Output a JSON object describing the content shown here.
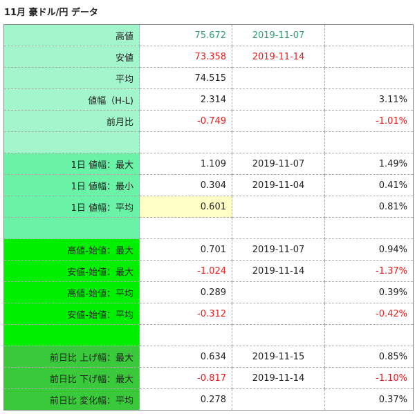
{
  "title": "11月 豪ドル/円 データ",
  "rows": [
    {
      "label": "高値",
      "value": "75.672",
      "date": "2019-11-07",
      "pct": ""
    },
    {
      "label": "安値",
      "value": "73.358",
      "date": "2019-11-14",
      "pct": ""
    },
    {
      "label": "平均",
      "value": "74.515",
      "date": "",
      "pct": ""
    },
    {
      "label": "値幅（H-L)",
      "value": "2.314",
      "date": "",
      "pct": "3.11%"
    },
    {
      "label": "前月比",
      "value": "-0.749",
      "date": "",
      "pct": "-1.01%"
    },
    {
      "label": "",
      "value": "",
      "date": "",
      "pct": ""
    },
    {
      "label": "1日 値幅：最大",
      "value": "1.109",
      "date": "2019-11-07",
      "pct": "1.49%"
    },
    {
      "label": "1日 値幅：最小",
      "value": "0.304",
      "date": "2019-11-04",
      "pct": "0.41%"
    },
    {
      "label": "1日 値幅：平均",
      "value": "0.601",
      "date": "",
      "pct": "0.81%"
    },
    {
      "label": "",
      "value": "",
      "date": "",
      "pct": ""
    },
    {
      "label": "高値-始値：最大",
      "value": "0.701",
      "date": "2019-11-07",
      "pct": "0.94%"
    },
    {
      "label": "安値-始値：最大",
      "value": "-1.024",
      "date": "2019-11-14",
      "pct": "-1.37%"
    },
    {
      "label": "高値-始値：平均",
      "value": "0.289",
      "date": "",
      "pct": "0.39%"
    },
    {
      "label": "安値-始値：平均",
      "value": "-0.312",
      "date": "",
      "pct": "-0.42%"
    },
    {
      "label": "",
      "value": "",
      "date": "",
      "pct": ""
    },
    {
      "label": "前日比 上げ幅：最大",
      "value": "0.634",
      "date": "2019-11-15",
      "pct": "0.85%"
    },
    {
      "label": "前日比 下げ幅：最大",
      "value": "-0.817",
      "date": "2019-11-14",
      "pct": "-1.10%"
    },
    {
      "label": "前日比 変化幅：平均",
      "value": "0.278",
      "date": "",
      "pct": "0.37%"
    }
  ],
  "colors": {
    "label_group1": "#a3f5cc",
    "label_group2": "#6af2a6",
    "label_group3": "#00f000",
    "label_group4": "#3ac93a",
    "positive_high": "#2e9e6e",
    "negative": "#e02020",
    "highlight_cell": "#ffffc6"
  }
}
